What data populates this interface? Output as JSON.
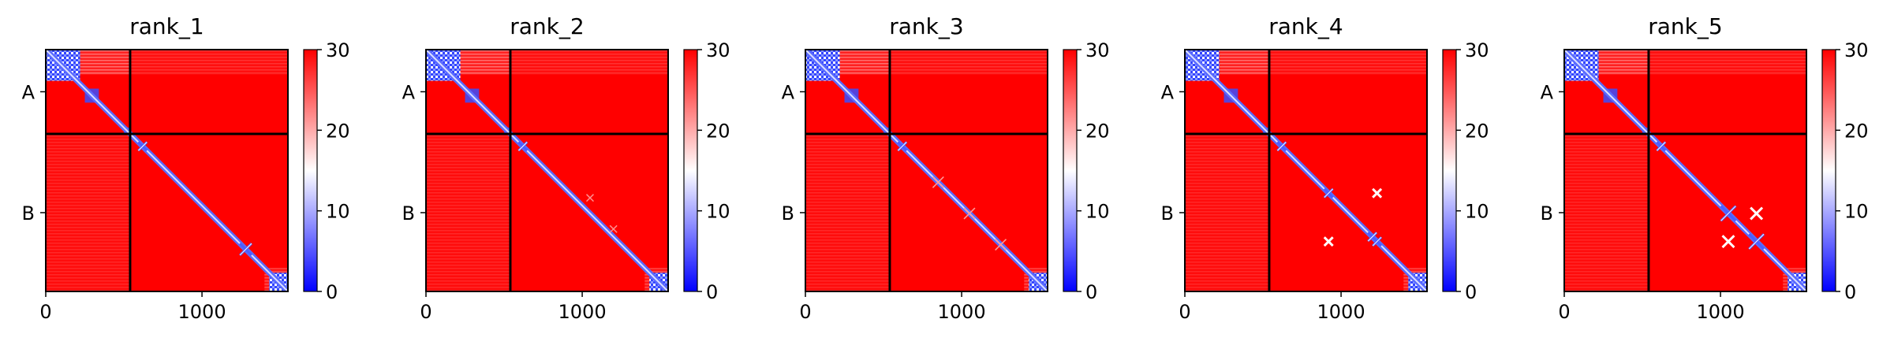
{
  "chart_data": {
    "type": "heatmap",
    "description": "Predicted aligned error (PAE) style heatmaps for 5 ranked models, chains A and B",
    "colormap": {
      "low": "#0000ff",
      "mid": "#ffffff",
      "high": "#ff0000"
    },
    "colorbar": {
      "min": 0,
      "max": 30,
      "ticks": [
        "0",
        "10",
        "20",
        "30"
      ]
    },
    "x_ticks": [
      {
        "value": 0,
        "label": "0"
      },
      {
        "value": 1000,
        "label": "1000"
      }
    ],
    "total_length": 1550,
    "chains": [
      {
        "label": "A",
        "start": 0,
        "end": 540
      },
      {
        "label": "B",
        "start": 540,
        "end": 1550
      }
    ],
    "chain_boundary": 540,
    "panels": [
      {
        "title": "rank_1",
        "features": {
          "offdiag_bands_A": "strong",
          "crosses": [
            [
              620,
              "small"
            ],
            [
              1280,
              "medium"
            ]
          ],
          "extra_blobs": []
        }
      },
      {
        "title": "rank_2",
        "features": {
          "offdiag_bands_A": "strong",
          "crosses": [
            [
              620,
              "small"
            ]
          ],
          "extra_blobs": [
            [
              1050,
              950,
              "faint"
            ],
            [
              1200,
              1150,
              "faint"
            ]
          ]
        }
      },
      {
        "title": "rank_3",
        "features": {
          "offdiag_bands_A": "strong",
          "crosses": [
            [
              620,
              "small"
            ],
            [
              850,
              "faint"
            ],
            [
              1050,
              "faint"
            ],
            [
              1250,
              "faint"
            ]
          ],
          "extra_blobs": []
        }
      },
      {
        "title": "rank_4",
        "features": {
          "offdiag_bands_A": "strong",
          "crosses": [
            [
              620,
              "small"
            ],
            [
              920,
              "small"
            ],
            [
              1200,
              "small"
            ],
            [
              1230,
              "small"
            ]
          ],
          "extra_blobs": [
            [
              1230,
              920,
              "medium"
            ],
            [
              920,
              1230,
              "medium"
            ]
          ]
        }
      },
      {
        "title": "rank_5",
        "features": {
          "offdiag_bands_A": "strong",
          "crosses": [
            [
              620,
              "small"
            ],
            [
              1050,
              "large"
            ],
            [
              1230,
              "large"
            ]
          ],
          "extra_blobs": [
            [
              1230,
              1050,
              "large"
            ],
            [
              1050,
              1230,
              "large"
            ]
          ]
        }
      }
    ]
  }
}
